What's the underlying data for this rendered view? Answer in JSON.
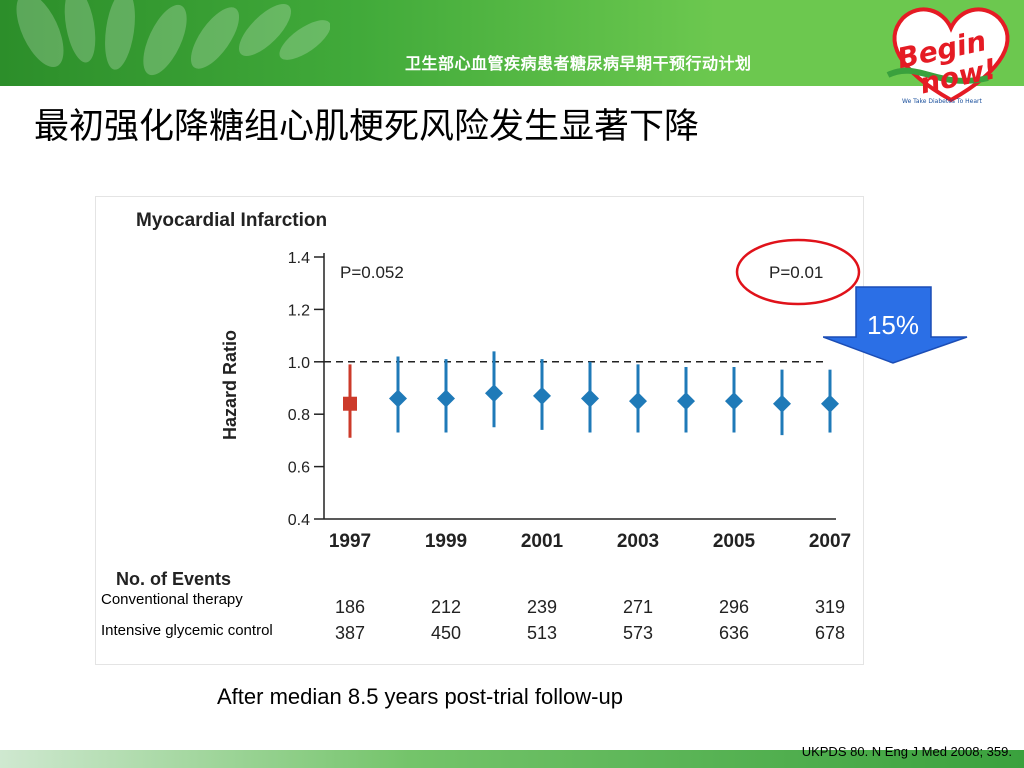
{
  "program_title": "卫生部心血管疾病患者糖尿病早期干预行动计划",
  "logo": {
    "line1": "Begin",
    "line2": "now!",
    "tagline": "We Take Diabetes To Heart"
  },
  "slide_title": "最初强化降糖组心肌梗死风险发生显著下降",
  "chart_data": {
    "type": "scatter",
    "title": "Myocardial Infarction",
    "ylabel": "Hazard Ratio",
    "xlabel": "",
    "ylim": [
      0.4,
      1.4
    ],
    "yticks": [
      "1.4",
      "1.2",
      "1.0",
      "0.8",
      "0.6",
      "0.4"
    ],
    "reference_line": 1.0,
    "x_tick_labels": [
      "1997",
      "1999",
      "2001",
      "2003",
      "2005",
      "2007"
    ],
    "p_left": "P=0.052",
    "p_right": "P=0.01",
    "points": [
      {
        "year": 1997,
        "hr": 0.84,
        "lo": 0.71,
        "hi": 0.99,
        "color": "#cc3a2a",
        "marker": "square"
      },
      {
        "year": 1998,
        "hr": 0.86,
        "lo": 0.73,
        "hi": 1.02,
        "color": "#1f7ab8",
        "marker": "diamond"
      },
      {
        "year": 1999,
        "hr": 0.86,
        "lo": 0.73,
        "hi": 1.01,
        "color": "#1f7ab8",
        "marker": "diamond"
      },
      {
        "year": 2000,
        "hr": 0.88,
        "lo": 0.75,
        "hi": 1.04,
        "color": "#1f7ab8",
        "marker": "diamond"
      },
      {
        "year": 2001,
        "hr": 0.87,
        "lo": 0.74,
        "hi": 1.01,
        "color": "#1f7ab8",
        "marker": "diamond"
      },
      {
        "year": 2002,
        "hr": 0.86,
        "lo": 0.73,
        "hi": 1.0,
        "color": "#1f7ab8",
        "marker": "diamond"
      },
      {
        "year": 2003,
        "hr": 0.85,
        "lo": 0.73,
        "hi": 0.99,
        "color": "#1f7ab8",
        "marker": "diamond"
      },
      {
        "year": 2004,
        "hr": 0.85,
        "lo": 0.73,
        "hi": 0.98,
        "color": "#1f7ab8",
        "marker": "diamond"
      },
      {
        "year": 2005,
        "hr": 0.85,
        "lo": 0.73,
        "hi": 0.98,
        "color": "#1f7ab8",
        "marker": "diamond"
      },
      {
        "year": 2006,
        "hr": 0.84,
        "lo": 0.72,
        "hi": 0.97,
        "color": "#1f7ab8",
        "marker": "diamond"
      },
      {
        "year": 2007,
        "hr": 0.84,
        "lo": 0.73,
        "hi": 0.97,
        "color": "#1f7ab8",
        "marker": "diamond"
      }
    ],
    "events_title": "No. of Events",
    "events": [
      {
        "label": "Conventional therapy",
        "values": [
          "186",
          "212",
          "239",
          "271",
          "296",
          "319"
        ]
      },
      {
        "label": "Intensive glycemic control",
        "values": [
          "387",
          "450",
          "513",
          "573",
          "636",
          "678"
        ]
      }
    ]
  },
  "reduction_label": "15%",
  "footnote": "After median 8.5 years post-trial follow-up",
  "citation": "UKPDS 80. N Eng J Med 2008; 359.",
  "colors": {
    "banner_green": "#41aa3a",
    "ci_blue": "#1f7ab8",
    "ci_red": "#cc3a2a",
    "arrow_blue": "#2b6fe6",
    "highlight_red": "#e0121a"
  }
}
